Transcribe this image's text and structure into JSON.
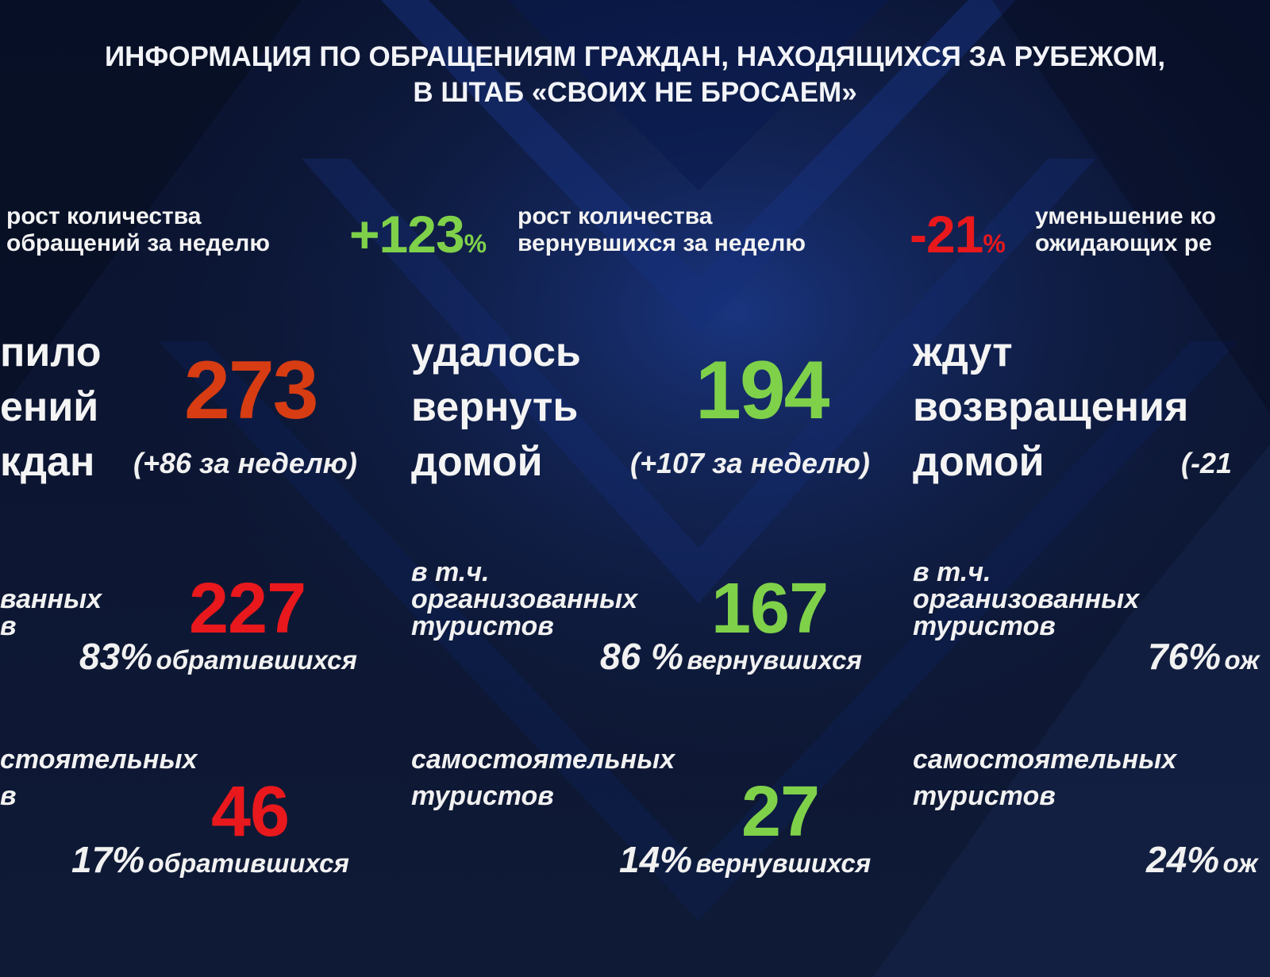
{
  "colors": {
    "background": "#0b1228",
    "green": "#7fd14a",
    "red": "#e8181c",
    "orange": "#d83c12"
  },
  "header": {
    "title_line1": "ИНФОРМАЦИЯ ПО ОБРАЩЕНИЯМ ГРАЖДАН, НАХОДЯЩИХСЯ ЗА РУБЕЖОМ,",
    "title_line2": "В ШТАБ «СВОИХ НЕ БРОСАЕМ»"
  },
  "growth": [
    {
      "value": "",
      "label_line1": "рост количества",
      "label_line2": "обращений за неделю"
    },
    {
      "value": "+123",
      "unit": "%",
      "label_line1": "рост количества",
      "label_line2": "вернувшихся за неделю"
    },
    {
      "value": "-21",
      "unit": "%",
      "label_line1": "уменьшение ко",
      "label_line2": "ожидающих ре"
    }
  ],
  "columns": [
    {
      "label": [
        "пило",
        "ений",
        "кдан"
      ],
      "total": "273",
      "weekly": "(+86 за неделю)",
      "organized": {
        "label": [
          "ванных",
          "в"
        ],
        "value": "227",
        "percent": "83%",
        "percent_word": "обратившихся"
      },
      "independent": {
        "label": [
          "стоятельных",
          "в"
        ],
        "value": "46",
        "percent": "17%",
        "percent_word": "обратившихся"
      }
    },
    {
      "label": [
        "удалось",
        "вернуть",
        "домой"
      ],
      "total": "194",
      "weekly": "(+107 за неделю)",
      "organized": {
        "label": [
          "в т.ч.",
          "организованных",
          "туристов"
        ],
        "value": "167",
        "percent": "86 %",
        "percent_word": "вернувшихся"
      },
      "independent": {
        "label": [
          "самостоятельных",
          "туристов"
        ],
        "value": "27",
        "percent": "14%",
        "percent_word": "вернувшихся"
      }
    },
    {
      "label": [
        "ждут",
        "возвращения",
        "домой"
      ],
      "total": "",
      "weekly": "(-21",
      "organized": {
        "label": [
          "в т.ч.",
          "организованных",
          "туристов"
        ],
        "value": "",
        "percent": "76%",
        "percent_word": "ож"
      },
      "independent": {
        "label": [
          "самостоятельных",
          "туристов"
        ],
        "value": "",
        "percent": "24%",
        "percent_word": "ож"
      }
    }
  ]
}
